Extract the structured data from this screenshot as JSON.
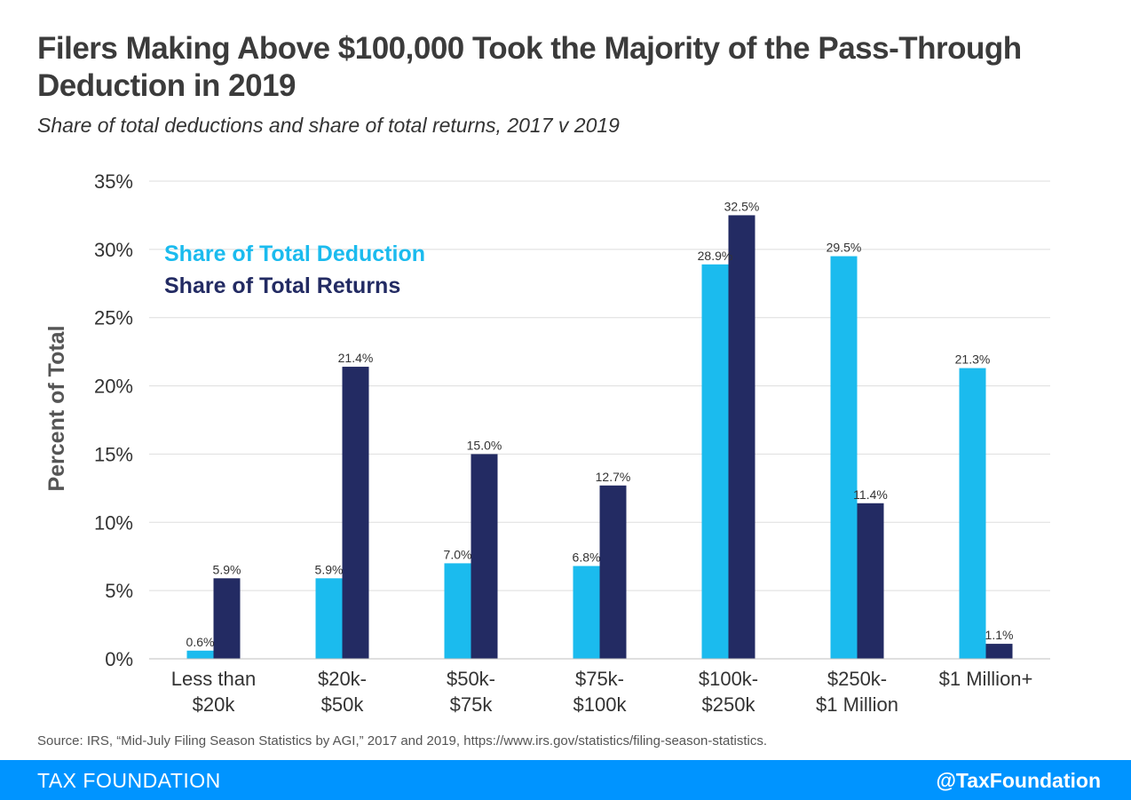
{
  "title": "Filers Making Above $100,000 Took the Majority of the Pass-Through Deduction in 2019",
  "subtitle": "Share of total deductions and share of total returns, 2017 v 2019",
  "source": "Source: IRS, “Mid-July Filing Season Statistics by AGI,” 2017 and 2019, https://www.irs.gov/statistics/filing-season-statistics.",
  "footer": {
    "brand": "TAX FOUNDATION",
    "handle": "@TaxFoundation"
  },
  "colors": {
    "deduction": "#1bbbee",
    "returns": "#232b63",
    "footer": "#0094ff"
  },
  "chart_data": {
    "type": "bar",
    "title": "Filers Making Above $100,000 Took the Majority of the Pass-Through Deduction in 2019",
    "subtitle": "Share of total deductions and share of total returns, 2017 v 2019",
    "xlabel": "",
    "ylabel": "Percent of Total",
    "ylim": [
      0,
      35
    ],
    "yticks": [
      0,
      5,
      10,
      15,
      20,
      25,
      30,
      35
    ],
    "ytick_labels": [
      "0%",
      "5%",
      "10%",
      "15%",
      "20%",
      "25%",
      "30%",
      "35%"
    ],
    "grid": true,
    "legend_position": "top-left",
    "categories": [
      [
        "Less than",
        "$20k"
      ],
      [
        "$20k-",
        "$50k"
      ],
      [
        "$50k-",
        "$75k"
      ],
      [
        "$75k-",
        "$100k"
      ],
      [
        "$100k-",
        "$250k"
      ],
      [
        "$250k-",
        "$1 Million"
      ],
      [
        "$1 Million+"
      ]
    ],
    "series": [
      {
        "name": "Share of Total Deduction",
        "color": "#1bbbee",
        "values": [
          0.6,
          5.9,
          7.0,
          6.8,
          28.9,
          29.5,
          21.3
        ],
        "labels": [
          "0.6%",
          "5.9%",
          "7.0%",
          "6.8%",
          "28.9%",
          "29.5%",
          "21.3%"
        ]
      },
      {
        "name": "Share of Total Returns",
        "color": "#232b63",
        "values": [
          5.9,
          21.4,
          15.0,
          12.7,
          32.5,
          11.4,
          1.1
        ],
        "labels": [
          "5.9%",
          "21.4%",
          "15.0%",
          "12.7%",
          "32.5%",
          "11.4%",
          "1.1%"
        ]
      }
    ]
  }
}
